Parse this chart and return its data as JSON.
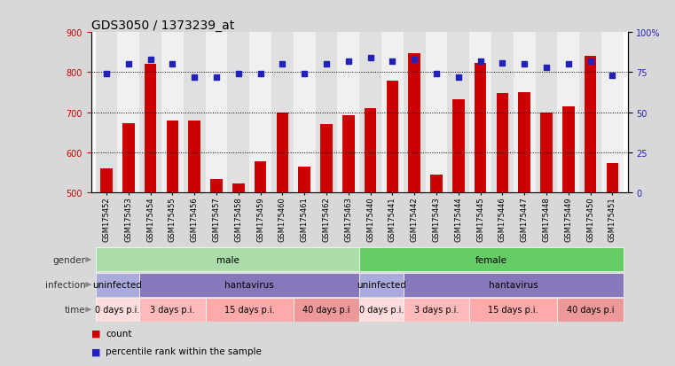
{
  "title": "GDS3050 / 1373239_at",
  "samples": [
    "GSM175452",
    "GSM175453",
    "GSM175454",
    "GSM175455",
    "GSM175456",
    "GSM175457",
    "GSM175458",
    "GSM175459",
    "GSM175460",
    "GSM175461",
    "GSM175462",
    "GSM175463",
    "GSM175440",
    "GSM175441",
    "GSM175442",
    "GSM175443",
    "GSM175444",
    "GSM175445",
    "GSM175446",
    "GSM175447",
    "GSM175448",
    "GSM175449",
    "GSM175450",
    "GSM175451"
  ],
  "counts": [
    560,
    673,
    820,
    678,
    680,
    533,
    522,
    576,
    698,
    563,
    670,
    693,
    710,
    778,
    848,
    543,
    732,
    823,
    748,
    750,
    700,
    714,
    840,
    572
  ],
  "percentiles": [
    74,
    80,
    83,
    80,
    72,
    72,
    74,
    74,
    80,
    74,
    80,
    82,
    84,
    82,
    83,
    74,
    72,
    82,
    81,
    80,
    78,
    80,
    82,
    73
  ],
  "ylim_left": [
    500,
    900
  ],
  "ylim_right": [
    0,
    100
  ],
  "yticks_left": [
    500,
    600,
    700,
    800,
    900
  ],
  "yticks_right": [
    0,
    25,
    50,
    75,
    100
  ],
  "bar_color": "#cc0000",
  "dot_color": "#2222bb",
  "bg_color": "#d8d8d8",
  "plot_bg": "#ffffff",
  "col_even_color": "#e0e0e0",
  "col_odd_color": "#f0f0f0",
  "gender_male_color": "#aaddaa",
  "gender_female_color": "#66cc66",
  "infection_uninfected_color": "#aaaadd",
  "infection_hantavirus_color": "#8877bb",
  "time_0days_color": "#ffdddd",
  "time_3days_color": "#ffbbbb",
  "time_15days_color": "#ffaaaa",
  "time_40days_color": "#ee9999",
  "title_fontsize": 10,
  "tick_fontsize": 7,
  "xtick_fontsize": 6,
  "row_label_fontsize": 7.5,
  "row_text_fontsize": 7.5,
  "legend_fontsize": 7.5,
  "n_samples": 24,
  "gender_segments": [
    {
      "label": "male",
      "start": 0,
      "end": 12
    },
    {
      "label": "female",
      "start": 12,
      "end": 24
    }
  ],
  "infection_segments": [
    {
      "label": "uninfected",
      "start": 0,
      "end": 2
    },
    {
      "label": "hantavirus",
      "start": 2,
      "end": 12
    },
    {
      "label": "uninfected",
      "start": 12,
      "end": 14
    },
    {
      "label": "hantavirus",
      "start": 14,
      "end": 24
    }
  ],
  "time_segments": [
    {
      "label": "0 days p.i.",
      "start": 0,
      "end": 2
    },
    {
      "label": "3 days p.i.",
      "start": 2,
      "end": 5
    },
    {
      "label": "15 days p.i.",
      "start": 5,
      "end": 9
    },
    {
      "label": "40 days p.i",
      "start": 9,
      "end": 12
    },
    {
      "label": "0 days p.i.",
      "start": 12,
      "end": 14
    },
    {
      "label": "3 days p.i.",
      "start": 14,
      "end": 17
    },
    {
      "label": "15 days p.i.",
      "start": 17,
      "end": 21
    },
    {
      "label": "40 days p.i",
      "start": 21,
      "end": 24
    }
  ],
  "row_labels": [
    "gender",
    "infection",
    "time"
  ],
  "legend_count_color": "#cc0000",
  "legend_dot_color": "#2222bb"
}
